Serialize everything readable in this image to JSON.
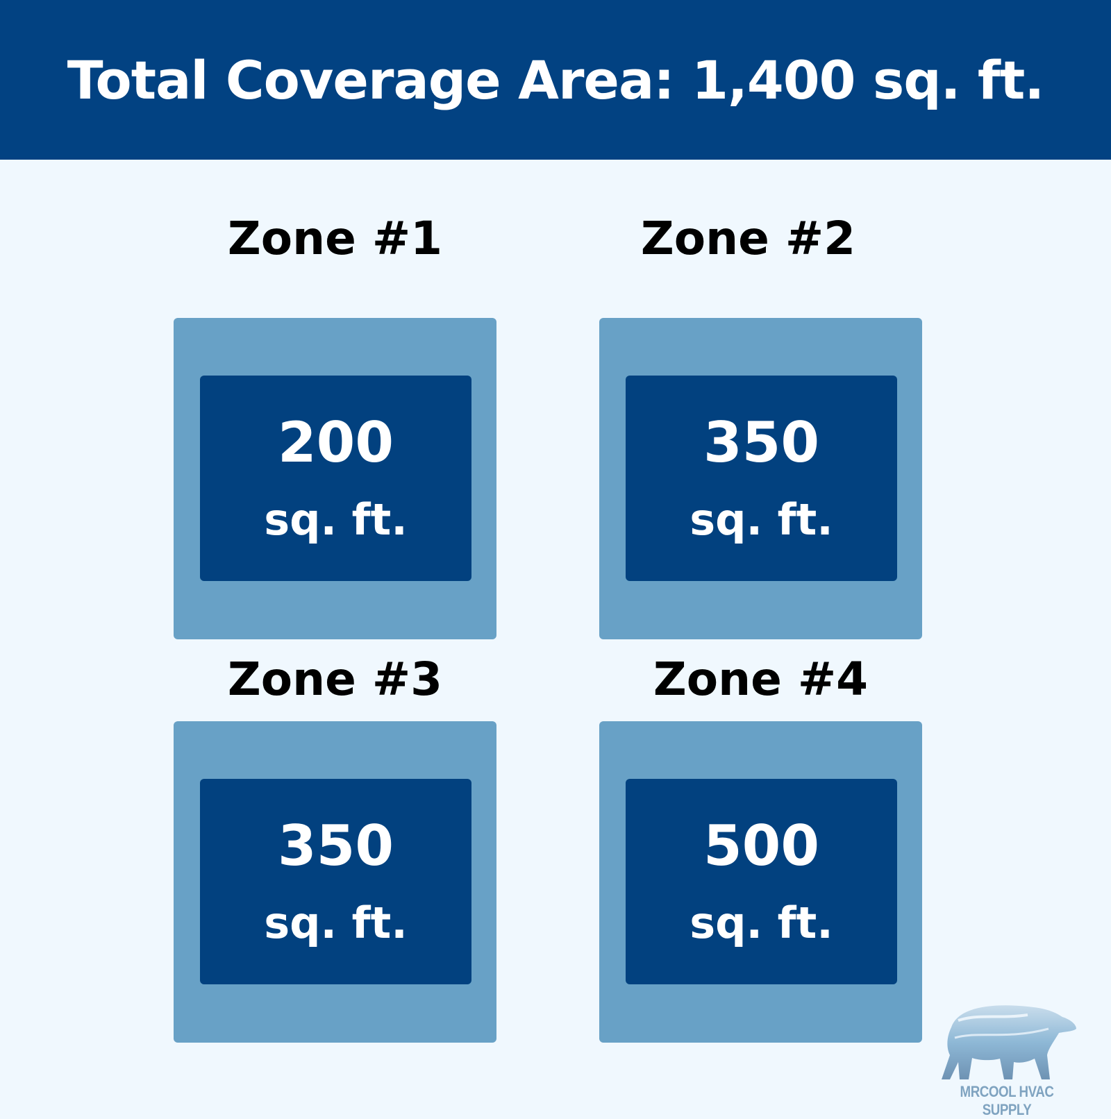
{
  "header": {
    "title": "Total Coverage Area: 1,400 sq. ft."
  },
  "zones": [
    {
      "label": "Zone #1",
      "value": "200",
      "unit": "sq. ft."
    },
    {
      "label": "Zone #2",
      "value": "350",
      "unit": "sq. ft."
    },
    {
      "label": "Zone #3",
      "value": "350",
      "unit": "sq. ft."
    },
    {
      "label": "Zone #4",
      "value": "500",
      "unit": "sq. ft."
    }
  ],
  "logo": {
    "text": "MRCOOL HVAC SUPPLY",
    "icon": "polar-bear-icon"
  },
  "colors": {
    "header": "#024282",
    "outer_box": "#68A1C6",
    "inner_box": "#02417F",
    "background": "#F0F8FE"
  }
}
